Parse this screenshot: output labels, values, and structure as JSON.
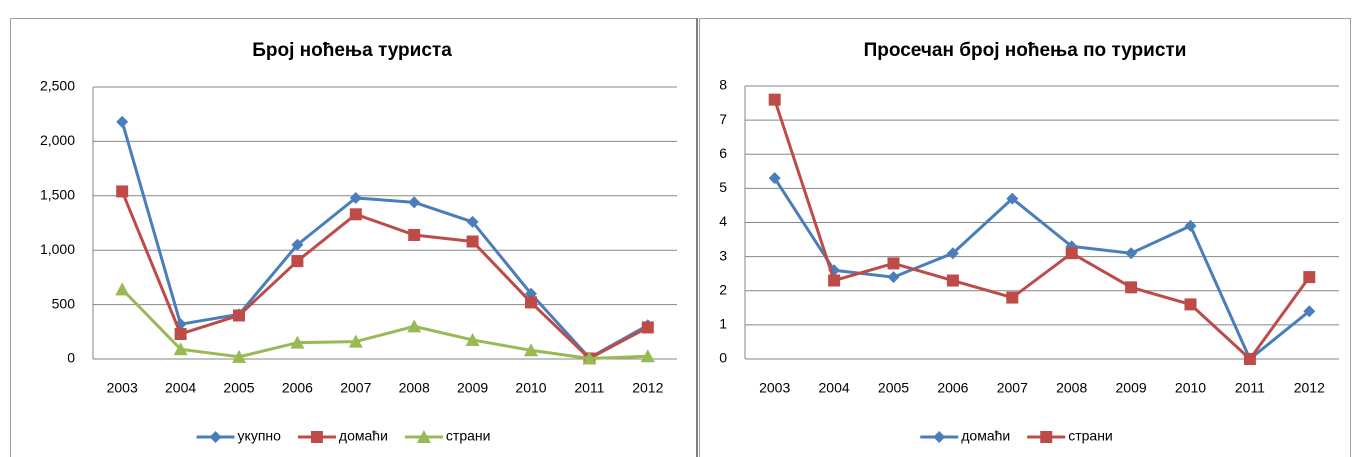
{
  "chart_data": [
    {
      "type": "line",
      "title": "Број ноћења туриста",
      "categories": [
        "2003",
        "2004",
        "2005",
        "2006",
        "2007",
        "2008",
        "2009",
        "2010",
        "2011",
        "2012"
      ],
      "series": [
        {
          "name": "укупно",
          "color": "#4a7ebb",
          "marker": "diamond",
          "values": [
            2180,
            320,
            410,
            1050,
            1480,
            1440,
            1260,
            600,
            10,
            310
          ]
        },
        {
          "name": "домаћи",
          "color": "#be4b48",
          "marker": "square",
          "values": [
            1540,
            230,
            400,
            900,
            1330,
            1140,
            1080,
            520,
            5,
            290
          ]
        },
        {
          "name": "страни",
          "color": "#98b954",
          "marker": "triangle",
          "values": [
            640,
            90,
            20,
            150,
            160,
            300,
            175,
            80,
            5,
            25
          ]
        }
      ],
      "ylim": [
        0,
        2500
      ],
      "yticks": [
        0,
        500,
        {
          "value": 1000,
          "label": "1,000"
        },
        {
          "value": 1500,
          "label": "1,500"
        },
        {
          "value": 2000,
          "label": "2,000"
        },
        {
          "value": 2500,
          "label": "2,500"
        }
      ],
      "grid": true,
      "legend": "bottom"
    },
    {
      "type": "line",
      "title": "Просечан број ноћења по туристи",
      "categories": [
        "2003",
        "2004",
        "2005",
        "2006",
        "2007",
        "2008",
        "2009",
        "2010",
        "2011",
        "2012"
      ],
      "series": [
        {
          "name": "домаћи",
          "color": "#4a7ebb",
          "marker": "diamond",
          "values": [
            5.3,
            2.6,
            2.4,
            3.1,
            4.7,
            3.3,
            3.1,
            3.9,
            0,
            1.4
          ]
        },
        {
          "name": "страни",
          "color": "#be4b48",
          "marker": "square",
          "values": [
            7.6,
            2.3,
            2.8,
            2.3,
            1.8,
            3.1,
            2.1,
            1.6,
            0,
            2.4
          ]
        }
      ],
      "ylim": [
        0,
        8
      ],
      "yticks": [
        0,
        1,
        2,
        3,
        4,
        5,
        6,
        7,
        8
      ],
      "grid": true,
      "legend": "bottom"
    }
  ]
}
